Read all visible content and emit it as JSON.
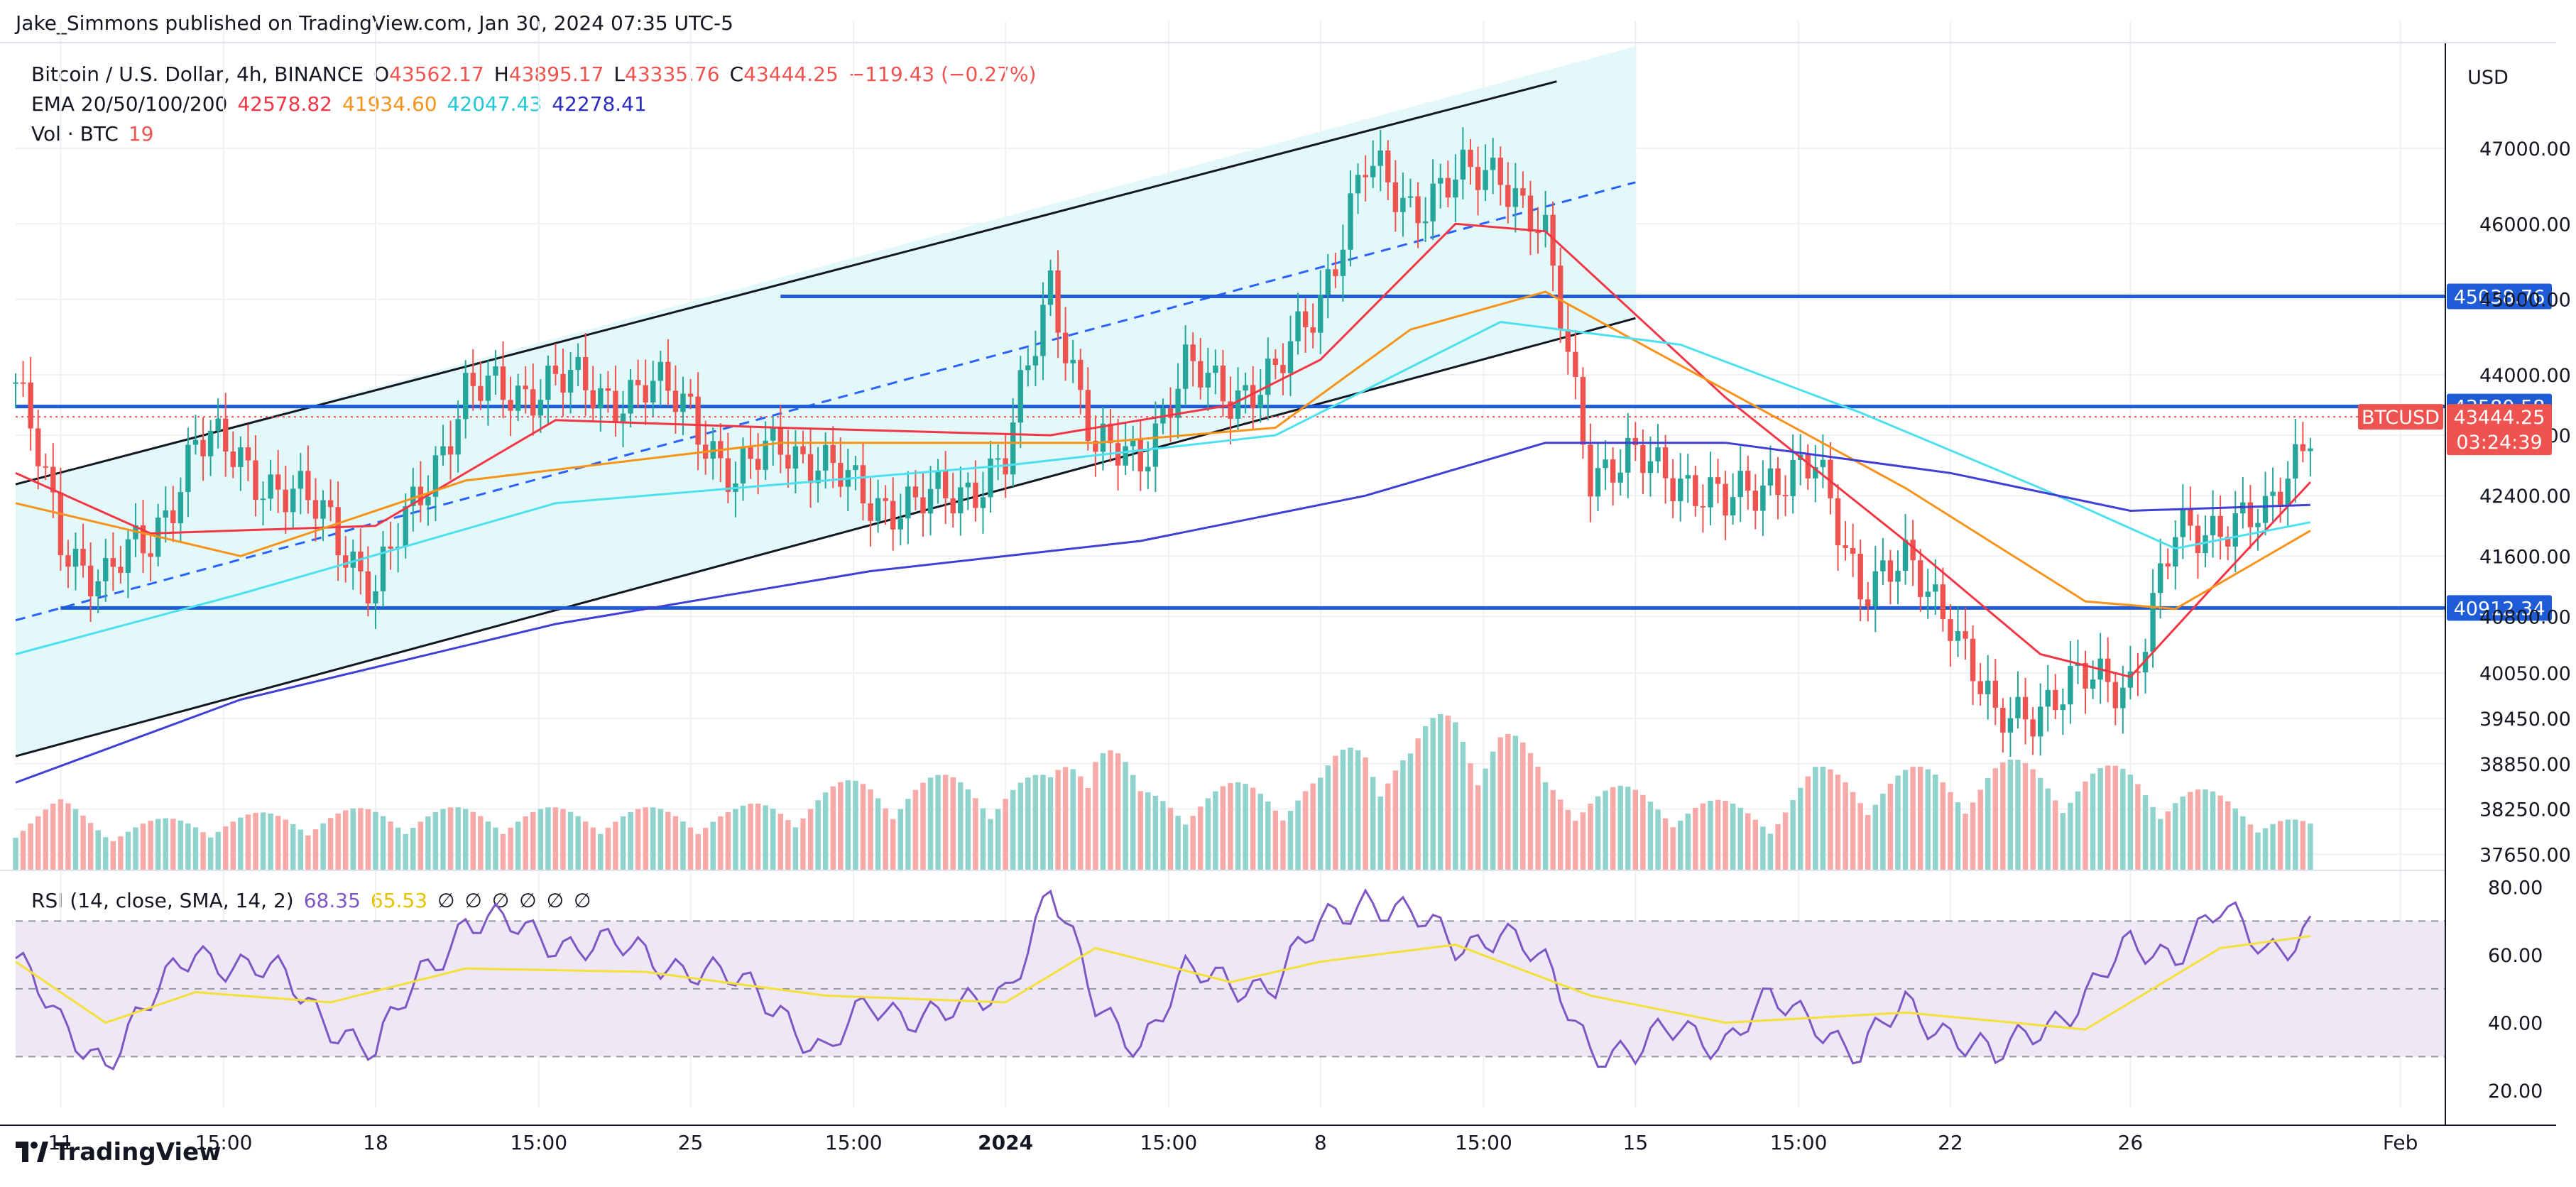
{
  "header": {
    "published": "Jake_Simmons published on TradingView.com, Jan 30, 2024 07:35 UTC-5"
  },
  "legend": {
    "symbol": "Bitcoin / U.S. Dollar, 4h, BINANCE",
    "ohlc": {
      "o_label": "O",
      "o": "43562.17",
      "h_label": "H",
      "h": "43895.17",
      "l_label": "L",
      "l": "43335.76",
      "c_label": "C",
      "c": "43444.25",
      "change": "−119.43 (−0.27%)"
    },
    "ema": {
      "label": "EMA 20/50/100/200",
      "v20": "42578.82",
      "v50": "41934.60",
      "v100": "42047.43",
      "v200": "42278.41"
    },
    "vol": {
      "label": "Vol · BTC",
      "value": "19"
    },
    "rsi": {
      "label": "RSI (14, close, SMA, 14, 2)",
      "value": "68.35",
      "sma": "65.53",
      "extras": [
        "∅",
        "∅",
        "∅",
        "∅",
        "∅",
        "∅"
      ]
    }
  },
  "colors": {
    "up": "#26a69a",
    "down": "#ef5350",
    "up_vol": "#8fd3cc",
    "down_vol": "#f7a9a7",
    "ema20": "#f23645",
    "ema50": "#f7931a",
    "ema100": "#4de1f0",
    "ema200": "#3f3fd6",
    "level": "#1e5bd6",
    "channel_fill": "#e0f7f7",
    "rsi": "#7e57c2",
    "rsi_sma": "#f5e03a",
    "rsi_band": "#ede7f6"
  },
  "footer": {
    "brand": "TradingView"
  },
  "chart_data": {
    "type": "candlestick",
    "symbol": "BTCUSD",
    "title": "Bitcoin / U.S. Dollar, 4h, BINANCE",
    "currency": "USD",
    "price_axis_label": "USD",
    "ylim": [
      37400,
      48400
    ],
    "y_ticks": [
      "47000.00",
      "46000.00",
      "45000.00",
      "44000.00",
      "43200.00",
      "42400.00",
      "41600.00",
      "40800.00",
      "40050.00",
      "39450.00",
      "38850.00",
      "38250.00",
      "37650.00"
    ],
    "x_ticks": [
      "11",
      "15:00",
      "18",
      "15:00",
      "25",
      "15:00",
      "2024",
      "15:00",
      "8",
      "15:00",
      "15",
      "15:00",
      "22",
      "26",
      "Feb"
    ],
    "x_range": [
      "2023-12-10",
      "2024-02-02"
    ],
    "last_price": {
      "label": "BTCUSD",
      "value": "43444.25",
      "countdown": "03:24:39"
    },
    "horizontal_levels": [
      {
        "value": 45038.76,
        "label": "45038.76",
        "from": "2023-12-27"
      },
      {
        "value": 43580.58,
        "label": "43580.58",
        "from": "2023-12-10"
      },
      {
        "value": 40912.34,
        "label": "40912.34",
        "from": "2023-12-11"
      }
    ],
    "channel": {
      "from": "2023-12-10",
      "to": "2024-01-15",
      "upper_start": 42550,
      "upper_end": 48350,
      "lower_start": 38950,
      "lower_end": 44750,
      "mid_start": 40750,
      "mid_end": 46550
    },
    "price_path": [
      [
        "2023-12-10",
        43900
      ],
      [
        "2023-12-11",
        41800
      ],
      [
        "2023-12-12",
        41300
      ],
      [
        "2023-12-13",
        41800
      ],
      [
        "2023-12-14",
        43100
      ],
      [
        "2023-12-15",
        42900
      ],
      [
        "2023-12-16",
        42400
      ],
      [
        "2023-12-17",
        42100
      ],
      [
        "2023-12-18",
        41100
      ],
      [
        "2023-12-19",
        42500
      ],
      [
        "2023-12-20",
        43700
      ],
      [
        "2023-12-21",
        43800
      ],
      [
        "2023-12-22",
        43900
      ],
      [
        "2023-12-23",
        43750
      ],
      [
        "2023-12-24",
        43800
      ],
      [
        "2023-12-25",
        43600
      ],
      [
        "2023-12-26",
        42500
      ],
      [
        "2023-12-27",
        43200
      ],
      [
        "2023-12-28",
        42700
      ],
      [
        "2023-12-29",
        42400
      ],
      [
        "2023-12-30",
        42200
      ],
      [
        "2023-12-31",
        42500
      ],
      [
        "2024-01-01",
        42800
      ],
      [
        "2024-01-02",
        45300
      ],
      [
        "2024-01-03",
        42900
      ],
      [
        "2024-01-04",
        43000
      ],
      [
        "2024-01-05",
        44000
      ],
      [
        "2024-01-06",
        43800
      ],
      [
        "2024-01-07",
        43900
      ],
      [
        "2024-01-08",
        45100
      ],
      [
        "2024-01-09",
        46700
      ],
      [
        "2024-01-10",
        46300
      ],
      [
        "2024-01-11",
        46500
      ],
      [
        "2024-01-12",
        46800
      ],
      [
        "2024-01-13",
        45700
      ],
      [
        "2024-01-14",
        42800
      ],
      [
        "2024-01-15",
        42800
      ],
      [
        "2024-01-16",
        42700
      ],
      [
        "2024-01-17",
        42200
      ],
      [
        "2024-01-18",
        42700
      ],
      [
        "2024-01-19",
        42700
      ],
      [
        "2024-01-20",
        41300
      ],
      [
        "2024-01-21",
        41400
      ],
      [
        "2024-01-22",
        40900
      ],
      [
        "2024-01-23",
        39300
      ],
      [
        "2024-01-24",
        39700
      ],
      [
        "2024-01-25",
        39900
      ],
      [
        "2024-01-26",
        40000
      ],
      [
        "2024-01-27",
        41800
      ],
      [
        "2024-01-28",
        42100
      ],
      [
        "2024-01-29",
        42000
      ],
      [
        "2024-01-30",
        43444
      ]
    ],
    "ema_lines": [
      {
        "name": "EMA 20",
        "value": "42578.82",
        "points": [
          [
            "2023-12-10",
            42700
          ],
          [
            "2023-12-13",
            41900
          ],
          [
            "2023-12-18",
            42000
          ],
          [
            "2023-12-22",
            43400
          ],
          [
            "2023-12-27",
            43300
          ],
          [
            "2024-01-02",
            43200
          ],
          [
            "2024-01-06",
            43600
          ],
          [
            "2024-01-08",
            44200
          ],
          [
            "2024-01-11",
            46000
          ],
          [
            "2024-01-13",
            45900
          ],
          [
            "2024-01-17",
            43700
          ],
          [
            "2024-01-21",
            41800
          ],
          [
            "2024-01-24",
            40300
          ],
          [
            "2024-01-26",
            40000
          ],
          [
            "2024-01-28",
            41300
          ],
          [
            "2024-01-30",
            42579
          ]
        ]
      },
      {
        "name": "EMA 50",
        "value": "41934.60",
        "points": [
          [
            "2023-12-10",
            42300
          ],
          [
            "2023-12-15",
            41600
          ],
          [
            "2023-12-20",
            42600
          ],
          [
            "2023-12-27",
            43100
          ],
          [
            "2024-01-03",
            43100
          ],
          [
            "2024-01-07",
            43300
          ],
          [
            "2024-01-10",
            44600
          ],
          [
            "2024-01-13",
            45100
          ],
          [
            "2024-01-17",
            43800
          ],
          [
            "2024-01-21",
            42500
          ],
          [
            "2024-01-25",
            41000
          ],
          [
            "2024-01-27",
            40900
          ],
          [
            "2024-01-30",
            41935
          ]
        ]
      },
      {
        "name": "EMA 100",
        "value": "42047.43",
        "points": [
          [
            "2023-12-10",
            40300
          ],
          [
            "2023-12-15",
            41100
          ],
          [
            "2023-12-22",
            42300
          ],
          [
            "2024-01-01",
            42800
          ],
          [
            "2024-01-07",
            43200
          ],
          [
            "2024-01-12",
            44700
          ],
          [
            "2024-01-16",
            44400
          ],
          [
            "2024-01-20",
            43500
          ],
          [
            "2024-01-24",
            42500
          ],
          [
            "2024-01-27",
            41700
          ],
          [
            "2024-01-30",
            42047
          ]
        ]
      },
      {
        "name": "EMA 200",
        "value": "42278.41",
        "points": [
          [
            "2023-12-10",
            38600
          ],
          [
            "2023-12-15",
            39700
          ],
          [
            "2023-12-22",
            40700
          ],
          [
            "2023-12-29",
            41400
          ],
          [
            "2024-01-04",
            41800
          ],
          [
            "2024-01-09",
            42400
          ],
          [
            "2024-01-13",
            43100
          ],
          [
            "2024-01-17",
            43100
          ],
          [
            "2024-01-22",
            42700
          ],
          [
            "2024-01-26",
            42200
          ],
          [
            "2024-01-30",
            42278
          ]
        ]
      }
    ],
    "volume_profile": [
      [
        "2023-12-10",
        0.25
      ],
      [
        "2023-12-11",
        0.35
      ],
      [
        "2023-12-12",
        0.2
      ],
      [
        "2023-12-14",
        0.25
      ],
      [
        "2023-12-18",
        0.3
      ],
      [
        "2023-12-21",
        0.3
      ],
      [
        "2023-12-26",
        0.3
      ],
      [
        "2023-12-29",
        0.5
      ],
      [
        "2024-01-02",
        0.5
      ],
      [
        "2024-01-03",
        1.0
      ],
      [
        "2024-01-04",
        0.4
      ],
      [
        "2024-01-08",
        0.5
      ],
      [
        "2024-01-09",
        0.85
      ],
      [
        "2024-01-10",
        0.7
      ],
      [
        "2024-01-11",
        1.0
      ],
      [
        "2024-01-12",
        0.9
      ],
      [
        "2024-01-13",
        0.5
      ],
      [
        "2024-01-18",
        0.3
      ],
      [
        "2024-01-19",
        0.55
      ],
      [
        "2024-01-22",
        0.55
      ],
      [
        "2024-01-23",
        0.6
      ],
      [
        "2024-01-26",
        0.55
      ],
      [
        "2024-01-29",
        0.3
      ],
      [
        "2024-01-30",
        0.2
      ]
    ],
    "rsi": {
      "label": "RSI (14, close, SMA, 14, 2)",
      "value": 68.35,
      "sma": 65.53,
      "ylim": [
        15,
        82
      ],
      "levels": [
        70,
        50,
        30
      ],
      "y_ticks": [
        "80.00",
        "60.00",
        "40.00",
        "20.00"
      ],
      "points": [
        [
          "2023-12-10",
          59
        ],
        [
          "2023-12-11",
          38
        ],
        [
          "2023-12-12",
          30
        ],
        [
          "2023-12-13",
          45
        ],
        [
          "2023-12-14",
          62
        ],
        [
          "2023-12-16",
          52
        ],
        [
          "2023-12-18",
          30
        ],
        [
          "2023-12-19",
          55
        ],
        [
          "2023-12-20",
          70
        ],
        [
          "2023-12-22",
          65
        ],
        [
          "2023-12-25",
          57
        ],
        [
          "2023-12-27",
          45
        ],
        [
          "2023-12-28",
          30
        ],
        [
          "2023-12-29",
          45
        ],
        [
          "2023-12-31",
          42
        ],
        [
          "2024-01-01",
          50
        ],
        [
          "2024-01-02",
          80
        ],
        [
          "2024-01-03",
          44
        ],
        [
          "2024-01-04",
          35
        ],
        [
          "2024-01-05",
          53
        ],
        [
          "2024-01-07",
          52
        ],
        [
          "2024-01-08",
          68
        ],
        [
          "2024-01-09",
          78
        ],
        [
          "2024-01-11",
          63
        ],
        [
          "2024-01-12",
          68
        ],
        [
          "2024-01-13",
          55
        ],
        [
          "2024-01-14",
          34
        ],
        [
          "2024-01-15",
          30
        ],
        [
          "2024-01-16",
          39
        ],
        [
          "2024-01-17",
          35
        ],
        [
          "2024-01-18",
          45
        ],
        [
          "2024-01-19",
          42
        ],
        [
          "2024-01-20",
          30
        ],
        [
          "2024-01-21",
          45
        ],
        [
          "2024-01-22",
          38
        ],
        [
          "2024-01-23",
          28
        ],
        [
          "2024-01-24",
          40
        ],
        [
          "2024-01-25",
          47
        ],
        [
          "2024-01-26",
          62
        ],
        [
          "2024-01-27",
          62
        ],
        [
          "2024-01-28",
          72
        ],
        [
          "2024-01-29",
          62
        ],
        [
          "2024-01-30",
          68.35
        ]
      ],
      "sma_points": [
        [
          "2023-12-10",
          58
        ],
        [
          "2023-12-12",
          40
        ],
        [
          "2023-12-14",
          49
        ],
        [
          "2023-12-17",
          46
        ],
        [
          "2023-12-20",
          56
        ],
        [
          "2023-12-24",
          55
        ],
        [
          "2023-12-28",
          48
        ],
        [
          "2024-01-01",
          46
        ],
        [
          "2024-01-03",
          62
        ],
        [
          "2024-01-06",
          52
        ],
        [
          "2024-01-08",
          58
        ],
        [
          "2024-01-11",
          63
        ],
        [
          "2024-01-14",
          48
        ],
        [
          "2024-01-17",
          40
        ],
        [
          "2024-01-21",
          43
        ],
        [
          "2024-01-25",
          38
        ],
        [
          "2024-01-28",
          62
        ],
        [
          "2024-01-30",
          65.53
        ]
      ]
    }
  }
}
